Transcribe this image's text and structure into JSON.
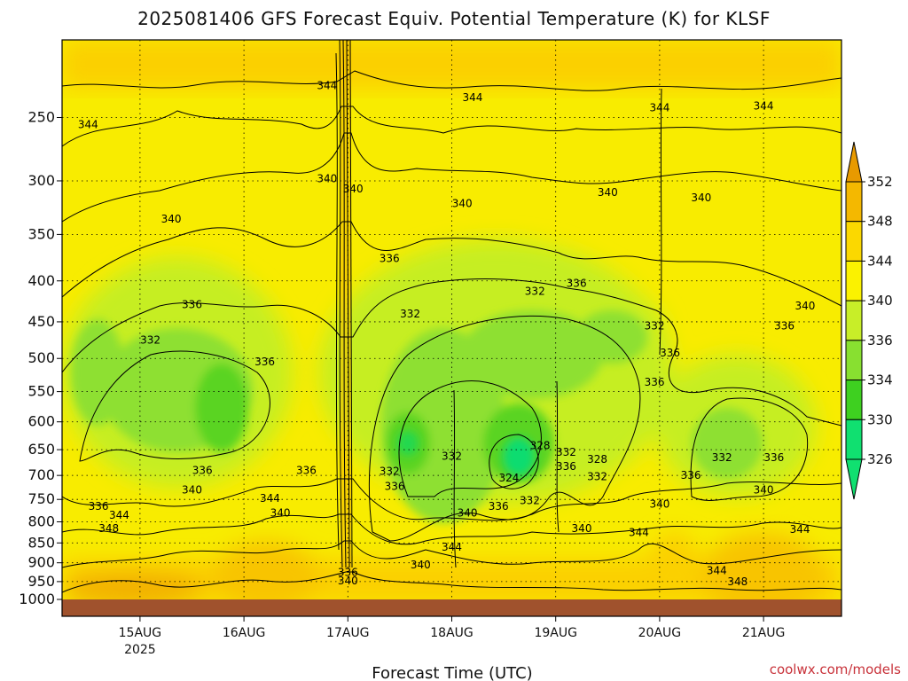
{
  "chart_data": {
    "type": "heatmap",
    "title": "2025081406 GFS Forecast Equiv. Potential Temperature (K) for KLSF",
    "xlabel": "Forecast Time (UTC)",
    "ylabel": "",
    "y_ticks": [
      250,
      300,
      350,
      400,
      450,
      500,
      550,
      600,
      650,
      700,
      750,
      800,
      850,
      900,
      950,
      1000
    ],
    "y_range": [
      200,
      1000
    ],
    "x_ticks": [
      {
        "label": "15AUG",
        "sublabel": "2025",
        "day": 15
      },
      {
        "label": "16AUG",
        "sublabel": "",
        "day": 16
      },
      {
        "label": "17AUG",
        "sublabel": "",
        "day": 17
      },
      {
        "label": "18AUG",
        "sublabel": "",
        "day": 18
      },
      {
        "label": "19AUG",
        "sublabel": "",
        "day": 19
      },
      {
        "label": "20AUG",
        "sublabel": "",
        "day": 20
      },
      {
        "label": "21AUG",
        "sublabel": "",
        "day": 21
      }
    ],
    "x_range": [
      "2025-08-14 06:00",
      "2025-08-21 18:00"
    ],
    "grid": true,
    "colorbar_levels": [
      352,
      348,
      344,
      340,
      336,
      334,
      330,
      326
    ],
    "colorbar_colors": [
      "#e89a00",
      "#f4b800",
      "#fbd800",
      "#fbf200",
      "#c8ee28",
      "#88e030",
      "#3ed020",
      "#10e070"
    ],
    "contour_labels": [
      {
        "text": "344",
        "day": 16.8,
        "p": 228
      },
      {
        "text": "344",
        "day": 18.2,
        "p": 236
      },
      {
        "text": "344",
        "day": 20.0,
        "p": 243
      },
      {
        "text": "344",
        "day": 21.0,
        "p": 242
      },
      {
        "text": "344",
        "day": 14.5,
        "p": 255
      },
      {
        "text": "340",
        "day": 16.8,
        "p": 298
      },
      {
        "text": "340",
        "day": 17.05,
        "p": 307
      },
      {
        "text": "340",
        "day": 18.1,
        "p": 320
      },
      {
        "text": "340",
        "day": 19.5,
        "p": 310
      },
      {
        "text": "340",
        "day": 20.4,
        "p": 315
      },
      {
        "text": "340",
        "day": 15.3,
        "p": 335
      },
      {
        "text": "340",
        "day": 21.4,
        "p": 430
      },
      {
        "text": "336",
        "day": 17.4,
        "p": 375
      },
      {
        "text": "336",
        "day": 19.2,
        "p": 403
      },
      {
        "text": "336",
        "day": 15.5,
        "p": 428
      },
      {
        "text": "336",
        "day": 21.2,
        "p": 455
      },
      {
        "text": "336",
        "day": 16.2,
        "p": 505
      },
      {
        "text": "336",
        "day": 20.1,
        "p": 492
      },
      {
        "text": "336",
        "day": 19.95,
        "p": 535
      },
      {
        "text": "332",
        "day": 18.8,
        "p": 412
      },
      {
        "text": "332",
        "day": 17.6,
        "p": 440
      },
      {
        "text": "332",
        "day": 15.1,
        "p": 474
      },
      {
        "text": "332",
        "day": 19.95,
        "p": 455
      },
      {
        "text": "336",
        "day": 15.6,
        "p": 690
      },
      {
        "text": "336",
        "day": 16.6,
        "p": 690
      },
      {
        "text": "332",
        "day": 17.4,
        "p": 692
      },
      {
        "text": "336",
        "day": 17.45,
        "p": 722
      },
      {
        "text": "332",
        "day": 18.0,
        "p": 662
      },
      {
        "text": "328",
        "day": 18.85,
        "p": 642
      },
      {
        "text": "332",
        "day": 19.1,
        "p": 655
      },
      {
        "text": "328",
        "day": 19.4,
        "p": 668
      },
      {
        "text": "336",
        "day": 19.1,
        "p": 682
      },
      {
        "text": "332",
        "day": 19.4,
        "p": 702
      },
      {
        "text": "324",
        "day": 18.55,
        "p": 705
      },
      {
        "text": "336",
        "day": 18.45,
        "p": 765
      },
      {
        "text": "332",
        "day": 18.75,
        "p": 752
      },
      {
        "text": "332",
        "day": 20.6,
        "p": 665
      },
      {
        "text": "336",
        "day": 21.1,
        "p": 665
      },
      {
        "text": "336",
        "day": 20.3,
        "p": 700
      },
      {
        "text": "340",
        "day": 15.5,
        "p": 730
      },
      {
        "text": "344",
        "day": 16.25,
        "p": 748
      },
      {
        "text": "340",
        "day": 16.35,
        "p": 780
      },
      {
        "text": "336",
        "day": 14.6,
        "p": 765
      },
      {
        "text": "344",
        "day": 14.8,
        "p": 785
      },
      {
        "text": "348",
        "day": 14.7,
        "p": 815
      },
      {
        "text": "340",
        "day": 18.15,
        "p": 780
      },
      {
        "text": "344",
        "day": 18.0,
        "p": 860
      },
      {
        "text": "340",
        "day": 17.7,
        "p": 905
      },
      {
        "text": "340",
        "day": 19.25,
        "p": 815
      },
      {
        "text": "340",
        "day": 20.0,
        "p": 760
      },
      {
        "text": "344",
        "day": 19.8,
        "p": 825
      },
      {
        "text": "340",
        "day": 21.0,
        "p": 730
      },
      {
        "text": "344",
        "day": 21.35,
        "p": 818
      },
      {
        "text": "344",
        "day": 20.55,
        "p": 920
      },
      {
        "text": "348",
        "day": 20.75,
        "p": 950
      },
      {
        "text": "336",
        "day": 17.0,
        "p": 925
      },
      {
        "text": "340",
        "day": 17.0,
        "p": 948
      }
    ]
  },
  "credit": "coolwx.com/models"
}
